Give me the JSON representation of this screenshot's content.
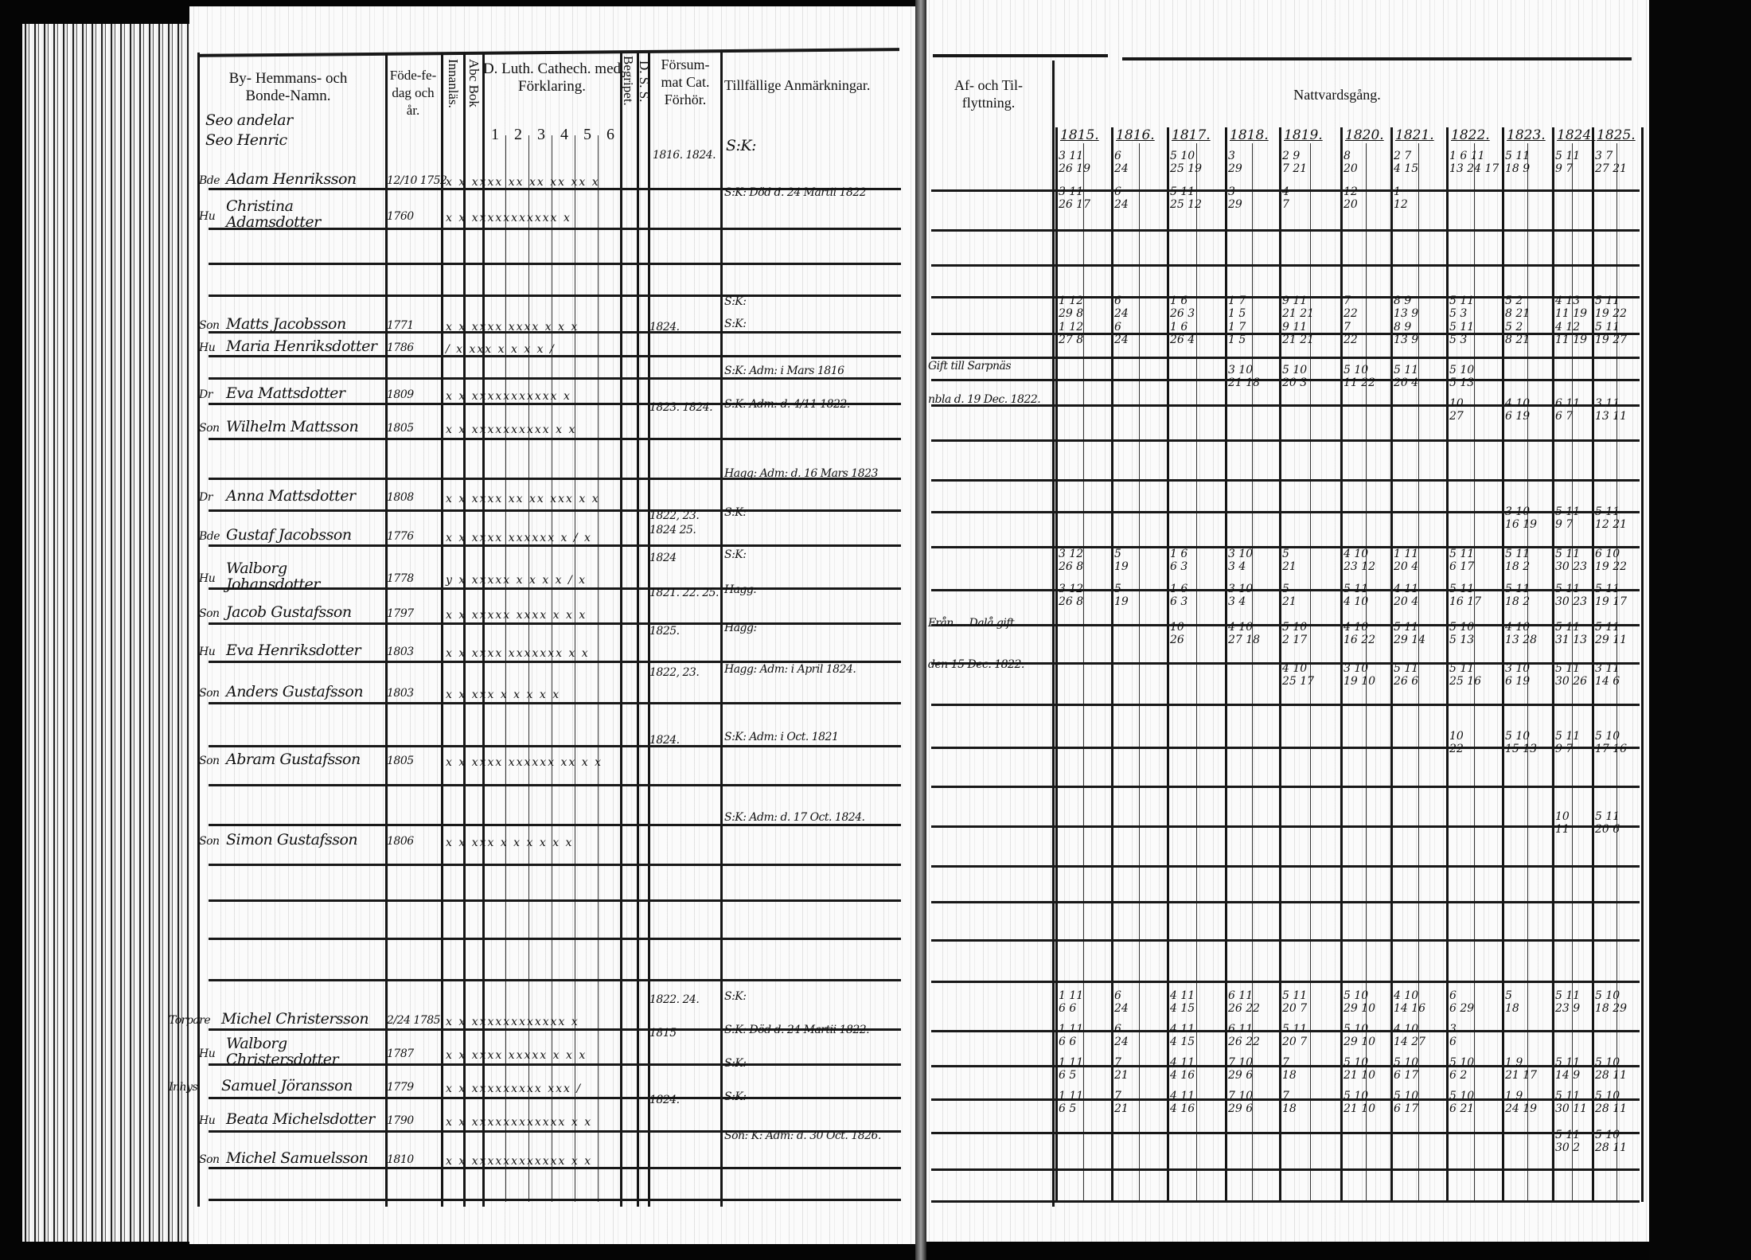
{
  "left_page": {
    "headers": {
      "name": "By- Hemmans- och Bonde-Namn.",
      "place_note_1": "Seo andelar",
      "place_note_2": "Seo Henric",
      "birth": "Föde-fe-dag och år.",
      "innanlas": "Innanläs.",
      "abc_bok": "Abc Bok",
      "catechism": "D. Luth. Cathech. med Förklaring.",
      "catechism_parts": [
        "1",
        "2",
        "3",
        "4",
        "5",
        "6"
      ],
      "begripet": "Begripet.",
      "dss": "D. S. S.",
      "forsummat": "Försum-mat Cat. Förhör.",
      "remarks": "Tillfällige Anmärkningar."
    },
    "header_forsummat": "1816. 1824.",
    "header_remark": "S:K:",
    "rows": [
      {
        "prefix": "Bde",
        "name": "Adam Henriksson",
        "birth": "12/10 1752",
        "marks": "x  x  xxxx xx xx xx xx x",
        "forsum": "",
        "note": ""
      },
      {
        "prefix": "Hu",
        "name": "Christina Adamsdotter",
        "birth": "1760",
        "marks": "x  x  xxxxxxxxxxx  x",
        "forsum": "",
        "note": "S:K: Död d. 24 Martii 1822"
      },
      {
        "prefix": "Son",
        "name": "Matts Jacobsson",
        "birth": "1771",
        "marks": "x  x  xxxx xxxx x x x",
        "forsum": "",
        "note": "S:K:"
      },
      {
        "prefix": "Hu",
        "name": "Maria Henriksdotter",
        "birth": "1786",
        "marks": "/  x  xxx  x  x  x  x  /",
        "forsum": "1824.",
        "note": "S:K:"
      },
      {
        "prefix": "Dr",
        "name": "Eva Mattsdotter",
        "birth": "1809",
        "marks": "x  x  xxxxxxxxxxx  x",
        "forsum": "",
        "note": "S:K: Adm: i Mars 1816"
      },
      {
        "prefix": "Son",
        "name": "Wilhelm Mattsson",
        "birth": "1805",
        "marks": "x  x  xxxxxxxxxx  x  x",
        "forsum": "1823. 1824.",
        "note": "S:K: Adm: d. 4/11 1822."
      },
      {
        "prefix": "Dr",
        "name": "Anna Mattsdotter",
        "birth": "1808",
        "marks": "x  x  xxxx xx xx xxx  x  x",
        "forsum": "",
        "note": "Hagg: Adm: d. 16 Mars 1823"
      },
      {
        "prefix": "Bde",
        "name": "Gustaf Jacobsson",
        "birth": "1776",
        "marks": "x  x  xxxx xxxxxx x / x",
        "forsum": "1822, 23. 1824 25.",
        "note": "S:K:"
      },
      {
        "prefix": "Hu",
        "name": "Walborg Johansdotter",
        "birth": "1778",
        "marks": "y  x  xxxxx x x x x / x",
        "forsum": "1824",
        "note": "S:K:"
      },
      {
        "prefix": "Son",
        "name": "Jacob Gustafsson",
        "birth": "1797",
        "marks": "x  x  xxxxx xxxx x x x",
        "forsum": "1821. 22. 25.",
        "note": "Hagg:"
      },
      {
        "prefix": "Hu",
        "name": "Eva Henriksdotter",
        "birth": "1803",
        "marks": "x  x  xxxx xxxxxxx  x  x",
        "forsum": "1825.",
        "note": "Hagg:"
      },
      {
        "prefix": "Son",
        "name": "Anders Gustafsson",
        "birth": "1803",
        "marks": "x  x  xxx  x x  x  x  x",
        "forsum": "1822, 23.",
        "note": "Hagg: Adm: i April 1824."
      },
      {
        "prefix": "Son",
        "name": "Abram Gustafsson",
        "birth": "1805",
        "marks": "x  x  xxxx xxxxxx xx x x",
        "forsum": "1824.",
        "note": "S:K: Adm: i Oct. 1821"
      },
      {
        "prefix": "Son",
        "name": "Simon Gustafsson",
        "birth": "1806",
        "marks": "x  x  xxx x x x  x  x  x",
        "forsum": "",
        "note": "S:K: Adm: d. 17 Oct. 1824."
      },
      {
        "prefix": "Torpare",
        "name": "Michel Christersson",
        "birth": "2/24 1785",
        "marks": "x  x  xxxxxxxxxxxx  x",
        "forsum": "1822. 24.",
        "note": "S:K:"
      },
      {
        "prefix": "Hu",
        "name": "Walborg Christersdotter",
        "birth": "1787",
        "marks": "x  x  xxxx xxxxx x x x",
        "forsum": "1815",
        "note": "S:K: Död d. 24 Martii 1822."
      },
      {
        "prefix": "Inhys",
        "name": "Samuel Jöransson",
        "birth": "1779",
        "marks": "x  x  xxxxxxxxx xxx  /",
        "forsum": "",
        "note": "S:K:"
      },
      {
        "prefix": "Hu",
        "name": "Beata Michelsdotter",
        "birth": "1790",
        "marks": "x  x  xxxxxxxxxxxx  x  x",
        "forsum": "1824.",
        "note": "S:K:"
      },
      {
        "prefix": "Son",
        "name": "Michel Samuelsson",
        "birth": "1810",
        "marks": "x  x  xxxxxxxxxxxx  x  x",
        "forsum": "",
        "note": "Son: K: Adm: d. 30 Oct. 1826."
      }
    ]
  },
  "right_page": {
    "headers": {
      "moving": "Af- och Til-flyttning.",
      "communion": "Nattvardsgång.",
      "years": [
        "1815.",
        "1816.",
        "1817.",
        "1818.",
        "1819.",
        "1820.",
        "1821.",
        "1822.",
        "1823.",
        "1824.",
        "1825."
      ]
    },
    "moving_notes": [
      {
        "row": 4,
        "text": "Gift till Sarpnäs"
      },
      {
        "row": 5,
        "text": "nbla d. 19 Dec. 1822."
      },
      {
        "row": 10,
        "text": "Från ... Dalå gift"
      },
      {
        "row": 11,
        "text": "den 15 Dec. 1822."
      }
    ],
    "communion_rows": [
      {
        "row": 0,
        "dates": [
          "3 11\n26 19",
          "6\n24",
          "5 10\n25 19",
          "3\n29",
          "2 9\n7 21",
          "8\n20",
          "2 7\n4 15",
          "1 6 11\n13 24 17",
          "5 11\n18 9",
          "5 11\n9 7",
          "3 7\n27 21"
        ]
      },
      {
        "row": 1,
        "dates": [
          "3 11\n26 17",
          "6\n24",
          "5 11\n25 12",
          "3\n29",
          "4\n7",
          "12\n20",
          "1\n12",
          "",
          "",
          "",
          ""
        ]
      },
      {
        "row": 2,
        "dates": [
          "1 12\n29 8",
          "6\n24",
          "1 6\n26 3",
          "1 7\n1 5",
          "9 11\n21 21",
          "7\n22",
          "8 9\n13 9",
          "5 11\n5 3",
          "5 2\n8 21",
          "4 13\n11 19",
          "5 11\n19 22"
        ]
      },
      {
        "row": 3,
        "dates": [
          "1 12\n27 8",
          "6\n24",
          "1 6\n26 4",
          "1 7\n1 5",
          "9 11\n21 21",
          "7\n22",
          "8 9\n13 9",
          "5 11\n5 3",
          "5 2\n8 21",
          "4 12\n11 19",
          "5 11\n19 27"
        ]
      },
      {
        "row": 4,
        "dates": [
          "",
          "",
          "",
          "3 10\n21 18",
          "5 10\n20 3",
          "5 10\n11 22",
          "5 11\n20 4",
          "5 10\n5 13",
          "",
          "",
          ""
        ]
      },
      {
        "row": 5,
        "dates": [
          "",
          "",
          "",
          "",
          "",
          "",
          "",
          "10\n27",
          "4 10\n6 19",
          "6 11\n6 7",
          "3 11\n13 11"
        ]
      },
      {
        "row": 7,
        "dates": [
          "",
          "",
          "",
          "",
          "",
          "",
          "",
          "",
          "3 10\n16 19",
          "5 11\n9 7",
          "5 11\n12 21"
        ]
      },
      {
        "row": 8,
        "dates": [
          "3 12\n26 8",
          "5\n19",
          "1 6\n6 3",
          "3 10\n3 4",
          "5\n21",
          "4 10\n23 12",
          "1 11\n20 4",
          "5 11\n6 17",
          "5 11\n18 2",
          "5 11\n30 23",
          "6 10\n19 22"
        ]
      },
      {
        "row": 9,
        "dates": [
          "3 12\n26 8",
          "5\n19",
          "1 6\n6 3",
          "3 10\n3 4",
          "5\n21",
          "5 11\n4 10",
          "4 11\n20 4",
          "5 11\n16 17",
          "5 11\n18 2",
          "5 11\n30 23",
          "5 11\n19 17"
        ]
      },
      {
        "row": 10,
        "dates": [
          "",
          "",
          "10\n26",
          "4 10\n27 18",
          "5 10\n2 17",
          "4 10\n16 22",
          "5 11\n29 14",
          "5 10\n5 13",
          "4 10\n13 28",
          "5 11\n31 13",
          "5 11\n29 11"
        ]
      },
      {
        "row": 11,
        "dates": [
          "",
          "",
          "",
          "",
          "4 10\n25 17",
          "3 10\n19 10",
          "5 11\n26 6",
          "5 11\n25 16",
          "3 10\n6 19",
          "5 11\n30 26",
          "3 11\n14 6"
        ]
      },
      {
        "row": 12,
        "dates": [
          "",
          "",
          "",
          "",
          "",
          "",
          "",
          "10\n22",
          "5 10\n15 13",
          "5 11\n9 7",
          "5 10\n17 16"
        ]
      },
      {
        "row": 13,
        "dates": [
          "",
          "",
          "",
          "",
          "",
          "",
          "",
          "",
          "",
          "10\n11",
          "5 11\n20 6"
        ]
      },
      {
        "row": 14,
        "dates": [
          "1 11\n6 6",
          "6\n24",
          "4 11\n4 15",
          "6 11\n26 22",
          "5 11\n20 7",
          "5 10\n29 10",
          "4 10\n14 16",
          "6\n6 29",
          "5\n18",
          "5 11\n23 9",
          "5 10\n18 29"
        ]
      },
      {
        "row": 15,
        "dates": [
          "1 11\n6 6",
          "6\n24",
          "4 11\n4 15",
          "6 11\n26 22",
          "5 11\n20 7",
          "5 10\n29 10",
          "4 10\n14 27",
          "3\n6",
          "",
          "",
          ""
        ]
      },
      {
        "row": 16,
        "dates": [
          "1 11\n6 5",
          "7\n21",
          "4 11\n4 16",
          "7 10\n29 6",
          "7\n18",
          "5 10\n21 10",
          "5 10\n6 17",
          "5 10\n6 2",
          "1 9\n21 17",
          "5 11\n14 9",
          "5 10\n28 11"
        ]
      },
      {
        "row": 17,
        "dates": [
          "1 11\n6 5",
          "7\n21",
          "4 11\n4 16",
          "7 10\n29 6",
          "7\n18",
          "5 10\n21 10",
          "5 10\n6 17",
          "5 10\n6 21",
          "1 9\n24 19",
          "5 11\n30 11",
          "5 10\n28 11"
        ]
      },
      {
        "row": 18,
        "dates": [
          "",
          "",
          "",
          "",
          "",
          "",
          "",
          "",
          "",
          "5 11\n30 2",
          "5 10\n28 11"
        ]
      }
    ]
  },
  "colors": {
    "ink": "#111111",
    "paper": "#fbfbfb",
    "background": "#050505"
  }
}
